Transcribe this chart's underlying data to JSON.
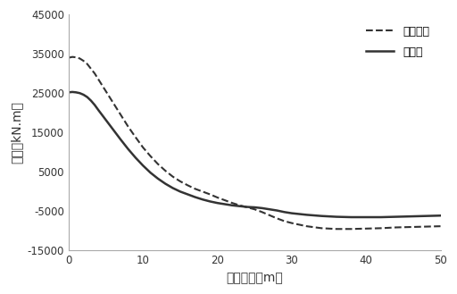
{
  "title": "",
  "xlabel": "纵向距离（m）",
  "ylabel": "弯矩（kN.m）",
  "xlim": [
    0,
    50
  ],
  "ylim": [
    -15000,
    45000
  ],
  "yticks": [
    -15000,
    -5000,
    5000,
    15000,
    25000,
    35000,
    45000
  ],
  "xticks": [
    0,
    10,
    20,
    30,
    40,
    50
  ],
  "legend_traditional": "传统方法",
  "legend_new": "新方法",
  "x": [
    0,
    0.5,
    1,
    1.5,
    2,
    2.5,
    3,
    3.5,
    4,
    5,
    6,
    7,
    8,
    9,
    10,
    11,
    12,
    13,
    14,
    15,
    16,
    17,
    18,
    19,
    20,
    21,
    22,
    23,
    24,
    25,
    26,
    27,
    28,
    29,
    30,
    32,
    34,
    36,
    38,
    40,
    42,
    44,
    46,
    48,
    50
  ],
  "y_traditional": [
    34000,
    34200,
    34100,
    33800,
    33200,
    32400,
    31200,
    30000,
    28500,
    25500,
    22500,
    19500,
    16500,
    13800,
    11200,
    9000,
    7000,
    5300,
    3800,
    2600,
    1600,
    700,
    0,
    -700,
    -1500,
    -2200,
    -2900,
    -3500,
    -4000,
    -4500,
    -5200,
    -6000,
    -6800,
    -7500,
    -8000,
    -8800,
    -9300,
    -9500,
    -9500,
    -9400,
    -9300,
    -9100,
    -9000,
    -8900,
    -8800
  ],
  "y_new": [
    25200,
    25300,
    25200,
    25000,
    24600,
    24000,
    23100,
    22000,
    20700,
    18200,
    15700,
    13200,
    10800,
    8600,
    6600,
    4800,
    3300,
    2000,
    900,
    0,
    -700,
    -1400,
    -2000,
    -2500,
    -2900,
    -3200,
    -3500,
    -3700,
    -3900,
    -4000,
    -4200,
    -4500,
    -4800,
    -5200,
    -5500,
    -5900,
    -6200,
    -6400,
    -6500,
    -6500,
    -6500,
    -6400,
    -6300,
    -6200,
    -6100
  ],
  "line_color": "#333333",
  "background_color": "#ffffff",
  "spine_color": "#aaaaaa"
}
